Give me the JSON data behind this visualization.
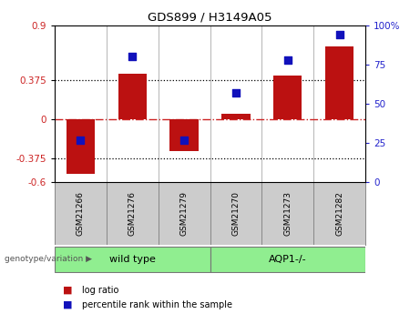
{
  "title": "GDS899 / H3149A05",
  "categories": [
    "GSM21266",
    "GSM21276",
    "GSM21279",
    "GSM21270",
    "GSM21273",
    "GSM21282"
  ],
  "log_ratios": [
    -0.52,
    0.44,
    -0.3,
    0.05,
    0.42,
    0.7
  ],
  "percentile_ranks": [
    27,
    80,
    27,
    57,
    78,
    94
  ],
  "ylim_left": [
    -0.6,
    0.9
  ],
  "ylim_right": [
    0,
    100
  ],
  "yticks_left": [
    -0.6,
    -0.375,
    0,
    0.375,
    0.9
  ],
  "ytick_labels_left": [
    "-0.6",
    "-0.375",
    "0",
    "0.375",
    "0.9"
  ],
  "yticks_right": [
    0,
    25,
    50,
    75,
    100
  ],
  "ytick_labels_right": [
    "0",
    "25",
    "50",
    "75",
    "100%"
  ],
  "hlines": [
    0.375,
    -0.375
  ],
  "bar_color": "#bb1111",
  "dot_color": "#1111bb",
  "zero_line_color": "#cc2222",
  "group_label_prefix": "genotype/variation",
  "legend_entries": [
    "log ratio",
    "percentile rank within the sample"
  ],
  "legend_colors": [
    "#bb1111",
    "#1111bb"
  ],
  "background_color": "#ffffff",
  "plot_bg_color": "#ffffff",
  "tick_label_color_left": "#cc2222",
  "tick_label_color_right": "#2222cc",
  "sample_box_color": "#cccccc",
  "group_ranges": [
    [
      -0.5,
      2.5,
      "wild type"
    ],
    [
      2.5,
      5.5,
      "AQP1-/-"
    ]
  ],
  "group_color": "#90ee90"
}
